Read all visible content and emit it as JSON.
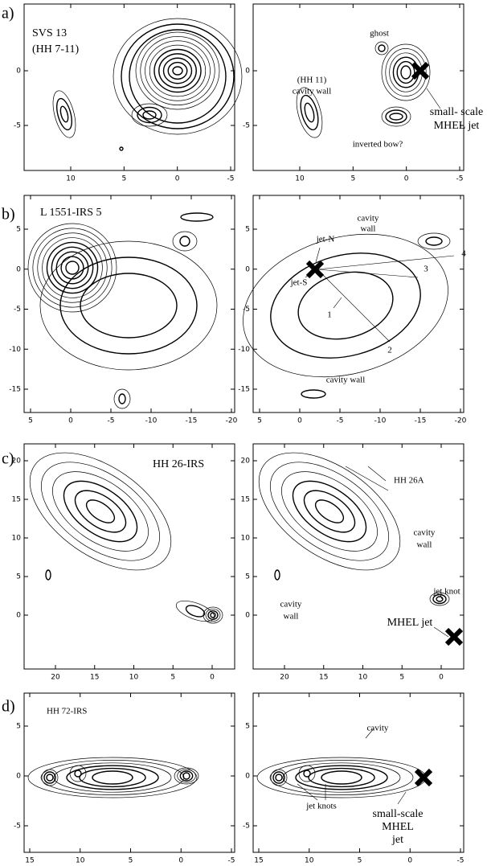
{
  "panels": [
    {
      "label": "a)",
      "left": {
        "annotations": [
          "SVS 13",
          "(HH 7-11)"
        ],
        "xticks": [
          10,
          5,
          0,
          -5
        ],
        "yticks": [
          0,
          -5
        ]
      },
      "right": {
        "annotations": [
          "ghost",
          "(HH 11)",
          "cavity wall",
          "small- scale",
          "MHEL jet",
          "inverted bow?"
        ],
        "xticks": [
          10,
          5,
          0,
          -5
        ],
        "yticks": [
          0,
          -5
        ]
      }
    },
    {
      "label": "b)",
      "left": {
        "annotations": [
          "L 1551-IRS 5"
        ],
        "xticks": [
          5,
          0,
          -5,
          -10,
          -15,
          -20
        ],
        "yticks": [
          5,
          0,
          -5,
          -10,
          -15
        ]
      },
      "right": {
        "annotations": [
          "cavity",
          "wall",
          "jet-N",
          "jet-S",
          "4",
          "3",
          "1",
          "2",
          "cavity wall"
        ],
        "xticks": [
          5,
          0,
          -5,
          -10,
          -15,
          -20
        ],
        "yticks": [
          5,
          0,
          -5,
          -10,
          -15
        ]
      }
    },
    {
      "label": "c)",
      "left": {
        "annotations": [
          "HH 26-IRS"
        ],
        "xticks": [
          20,
          15,
          10,
          5,
          0
        ],
        "yticks": [
          20,
          15,
          10,
          5,
          0
        ]
      },
      "right": {
        "annotations": [
          "HH 26A",
          "cavity",
          "wall",
          "cavity",
          "wall",
          "jet knot",
          "MHEL jet"
        ],
        "xticks": [
          20,
          15,
          10,
          5,
          0
        ],
        "yticks": [
          20,
          15,
          10,
          5,
          0
        ]
      }
    },
    {
      "label": "d)",
      "left": {
        "annotations": [
          "HH 72-IRS"
        ],
        "xticks": [
          15,
          10,
          5,
          0,
          -5
        ],
        "yticks": [
          5,
          0,
          -5
        ]
      },
      "right": {
        "annotations": [
          "cavity",
          "jet knots",
          "small-scale",
          "MHEL",
          "jet"
        ],
        "xticks": [
          15,
          10,
          5,
          0,
          -5
        ],
        "yticks": [
          5,
          0,
          -5
        ]
      }
    }
  ]
}
